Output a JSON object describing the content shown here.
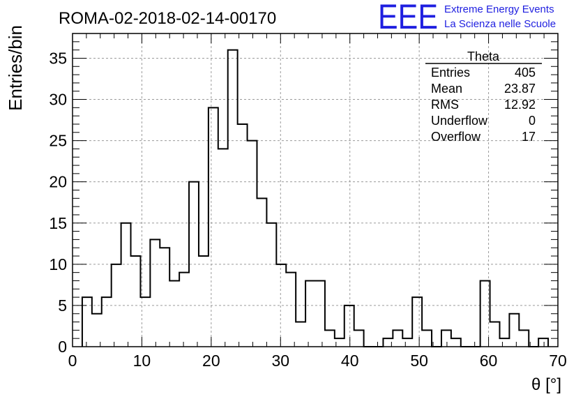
{
  "header": {
    "title": "ROMA-02-2018-02-14-00170",
    "logo_text": "EEE",
    "logo_line1": "Extreme Energy Events",
    "logo_line2": "La Scienza nelle Scuole",
    "logo_color": "#1f1fe0"
  },
  "stats": {
    "name": "Theta",
    "rows": [
      {
        "label": "Entries",
        "value": "405"
      },
      {
        "label": "Mean",
        "value": "23.87"
      },
      {
        "label": "RMS",
        "value": "12.92"
      },
      {
        "label": "Underflow",
        "value": "0"
      },
      {
        "label": "Overflow",
        "value": "17"
      }
    ]
  },
  "chart_data": {
    "type": "bar",
    "style": "step-histogram",
    "xlabel": "θ [°]",
    "ylabel": "Entries/bin",
    "xlim": [
      0,
      70
    ],
    "ylim": [
      0,
      38
    ],
    "grid": true,
    "bin_width": 1.4,
    "bin_start": 1.4,
    "values": [
      6,
      4,
      6,
      10,
      15,
      11,
      6,
      13,
      12,
      8,
      9,
      20,
      11,
      29,
      24,
      36,
      27,
      25,
      18,
      15,
      10,
      9,
      3,
      8,
      8,
      2,
      1,
      5,
      2,
      0,
      0,
      1,
      2,
      1,
      6,
      2,
      0,
      2,
      1,
      0,
      0,
      8,
      3,
      1,
      4,
      2,
      0,
      1
    ],
    "x_ticks": [
      0,
      10,
      20,
      30,
      40,
      50,
      60,
      70
    ],
    "y_ticks": [
      0,
      5,
      10,
      15,
      20,
      25,
      30,
      35
    ],
    "line_color": "#000000"
  }
}
